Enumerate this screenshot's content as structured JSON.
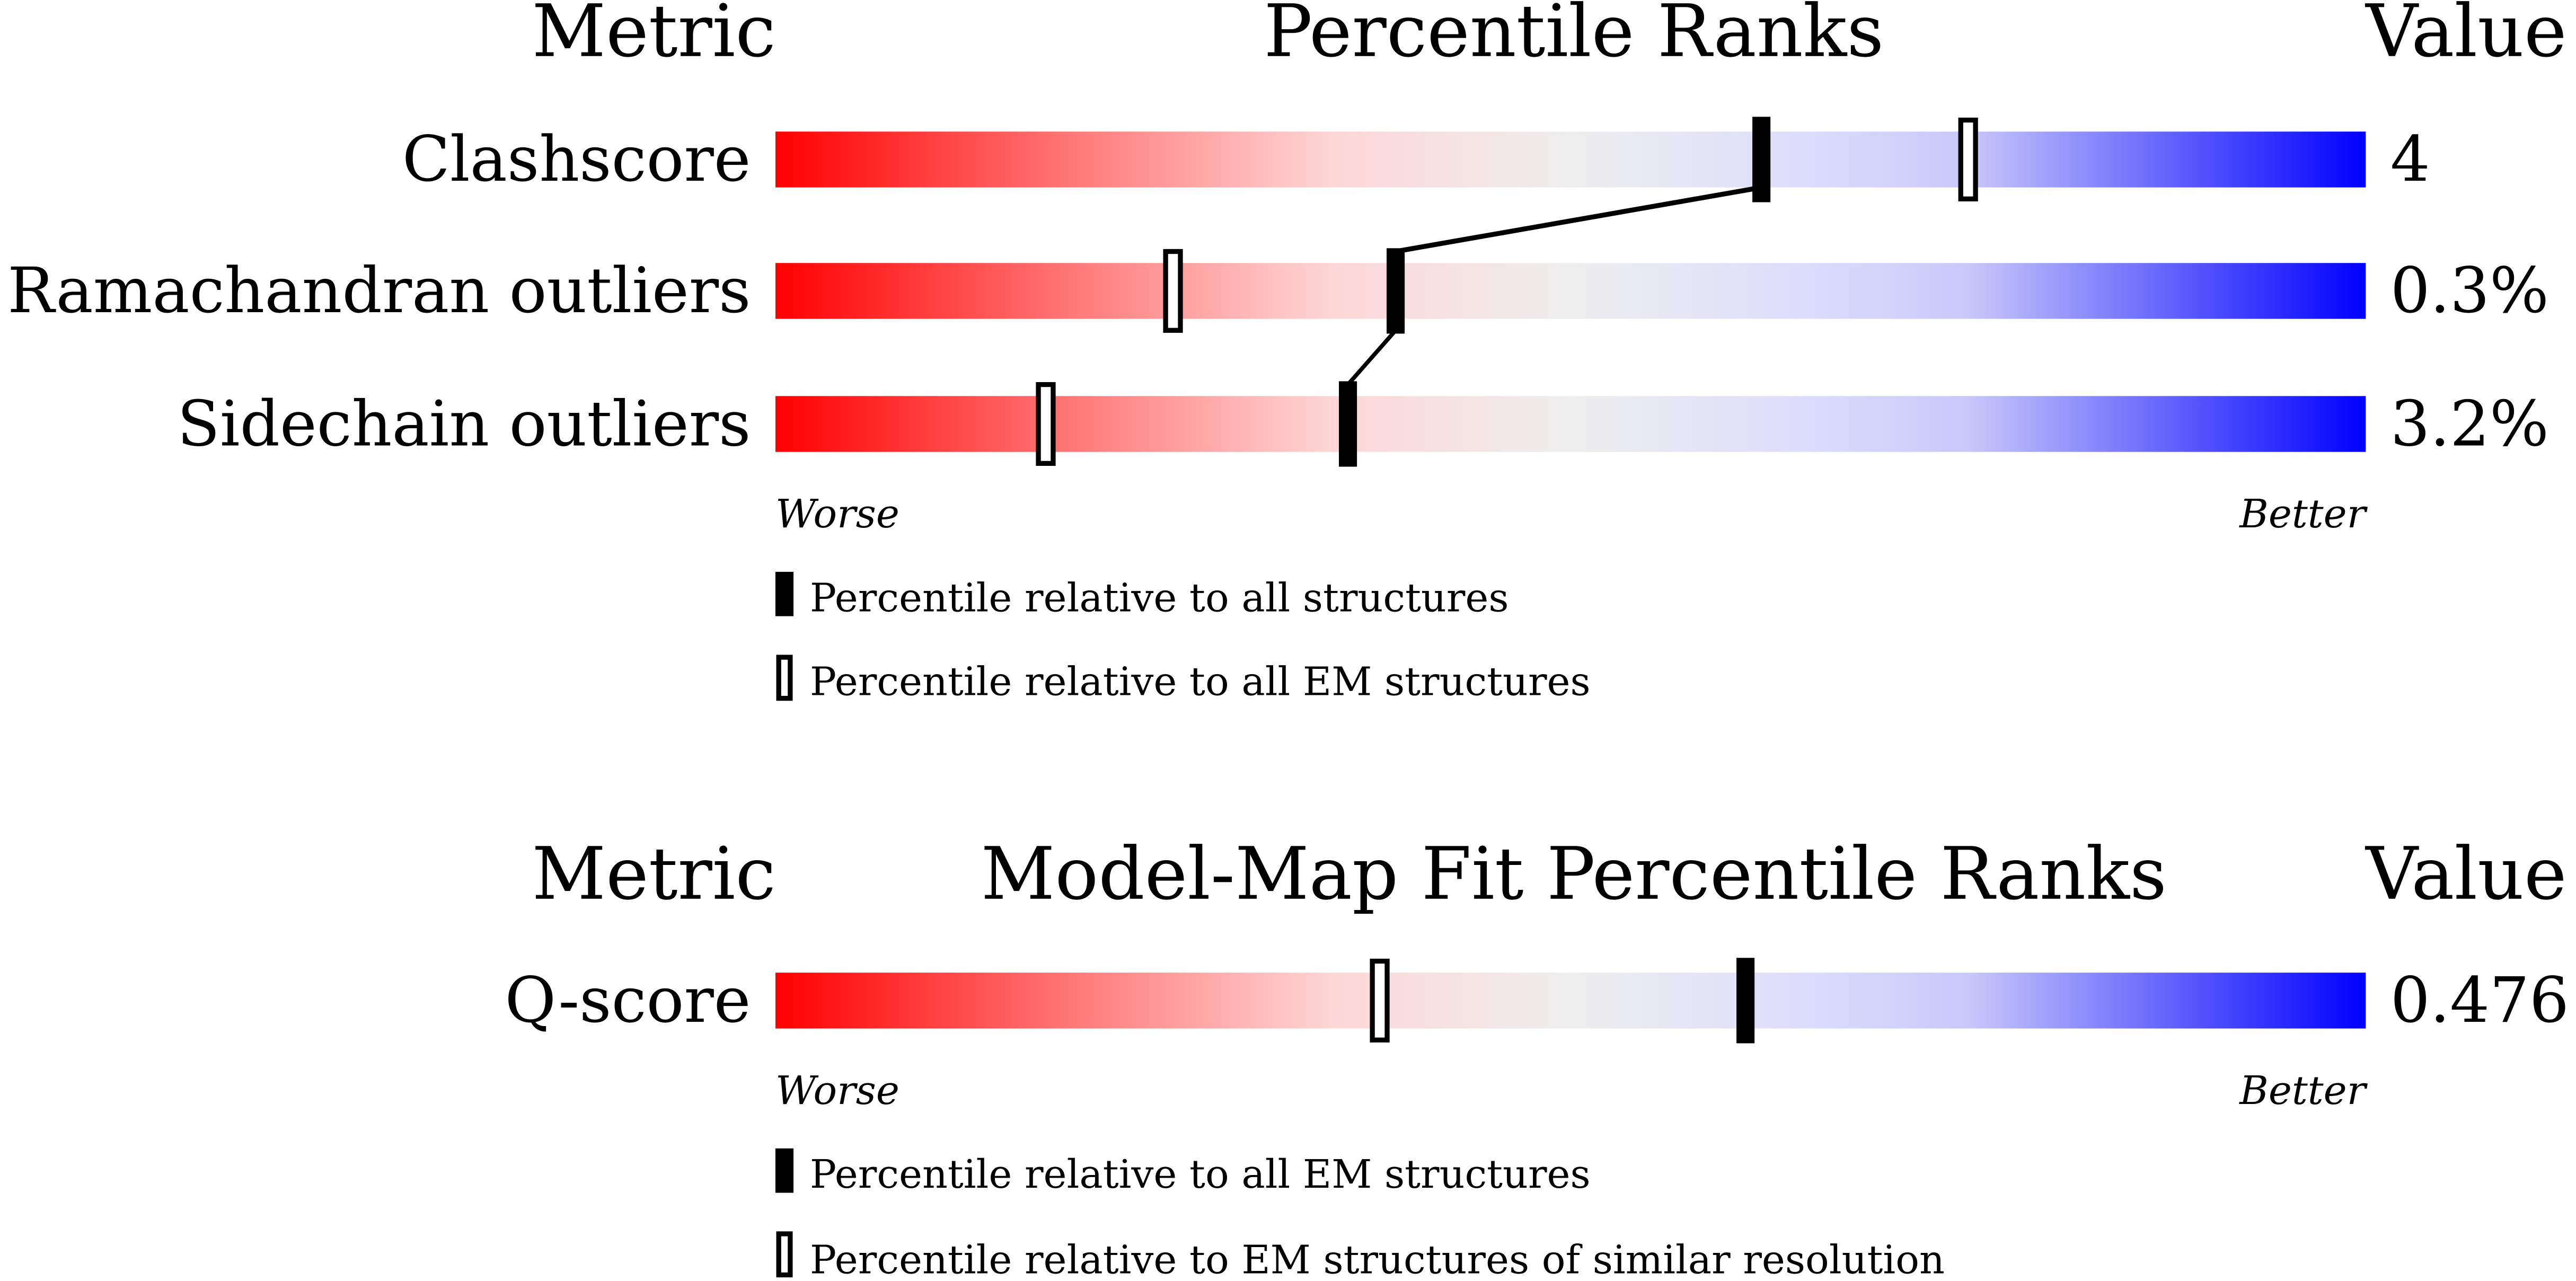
{
  "chart_data": [
    {
      "type": "percentile-slider",
      "headers": {
        "metric": "Metric",
        "title": "Percentile Ranks",
        "value": "Value"
      },
      "xlim": [
        0,
        100
      ],
      "axis": {
        "worse": "Worse",
        "better": "Better"
      },
      "colors": {
        "worse": "#ff0000",
        "neutral": "#eeeeee",
        "better": "#0000ff"
      },
      "rows": [
        {
          "metric": "Clashscore",
          "value": "4",
          "percentile_all": 62,
          "percentile_em": 75
        },
        {
          "metric": "Ramachandran outliers",
          "value": "0.3%",
          "percentile_all": 39,
          "percentile_em": 25
        },
        {
          "metric": "Sidechain outliers",
          "value": "3.2%",
          "percentile_all": 36,
          "percentile_em": 17
        }
      ],
      "legend": [
        {
          "marker": "filled",
          "label": "Percentile relative to all structures"
        },
        {
          "marker": "open",
          "label": "Percentile relative to all EM structures"
        }
      ]
    },
    {
      "type": "percentile-slider",
      "headers": {
        "metric": "Metric",
        "title": "Model-Map Fit Percentile Ranks",
        "value": "Value"
      },
      "xlim": [
        0,
        100
      ],
      "axis": {
        "worse": "Worse",
        "better": "Better"
      },
      "rows": [
        {
          "metric": "Q-score",
          "value": "0.476",
          "percentile_all": 61,
          "percentile_em": 38
        }
      ],
      "legend": [
        {
          "marker": "filled",
          "label": "Percentile relative to all EM structures"
        },
        {
          "marker": "open",
          "label": "Percentile relative to EM structures of similar resolution"
        }
      ]
    }
  ]
}
